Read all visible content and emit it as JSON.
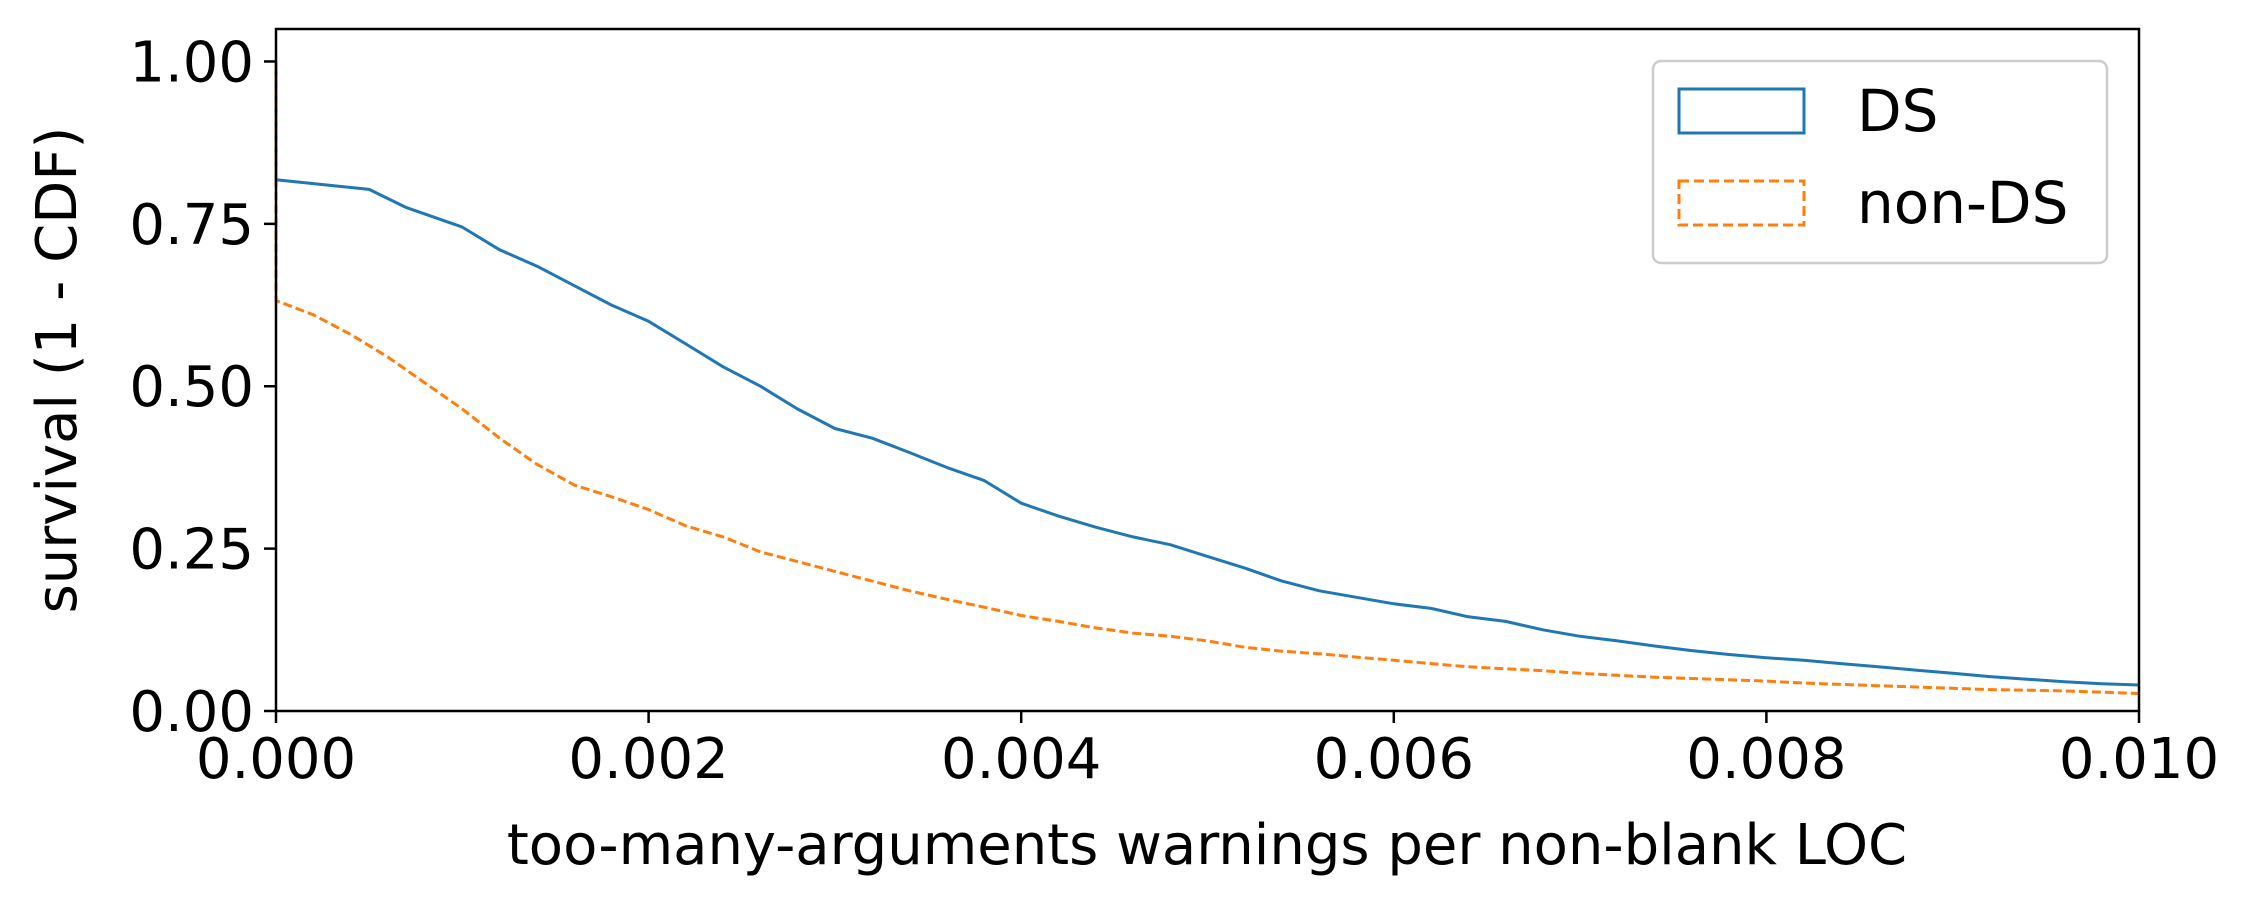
{
  "chart_data": {
    "type": "line",
    "title": "",
    "xlabel": "too-many-arguments warnings per non-blank LOC",
    "ylabel": "survival (1 - CDF)",
    "xlim": [
      0.0,
      0.01
    ],
    "ylim": [
      0.0,
      1.05
    ],
    "x_ticks": [
      0.0,
      0.002,
      0.004,
      0.006,
      0.008,
      0.01
    ],
    "x_tick_labels": [
      "0.000",
      "0.002",
      "0.004",
      "0.006",
      "0.008",
      "0.010"
    ],
    "y_ticks": [
      0.0,
      0.25,
      0.5,
      0.75,
      1.0
    ],
    "y_tick_labels": [
      "0.00",
      "0.25",
      "0.50",
      "0.75",
      "1.00"
    ],
    "grid": false,
    "legend_position": "top-right",
    "series": [
      {
        "name": "DS",
        "color": "#1f77b4",
        "line_style": "solid",
        "x": [
          0.0,
          0.0,
          0.0002,
          0.0005,
          0.0007,
          0.001,
          0.0012,
          0.0014,
          0.0016,
          0.0018,
          0.002,
          0.0022,
          0.0024,
          0.0026,
          0.0028,
          0.003,
          0.0032,
          0.0034,
          0.0036,
          0.0038,
          0.004,
          0.0042,
          0.0044,
          0.0046,
          0.0048,
          0.005,
          0.0052,
          0.0054,
          0.0056,
          0.0058,
          0.006,
          0.0062,
          0.0064,
          0.0066,
          0.0068,
          0.007,
          0.0072,
          0.0074,
          0.0076,
          0.0078,
          0.008,
          0.0082,
          0.0084,
          0.0086,
          0.0088,
          0.009,
          0.0092,
          0.0094,
          0.0096,
          0.0098,
          0.01
        ],
        "y": [
          1.0,
          0.818,
          0.812,
          0.803,
          0.775,
          0.745,
          0.71,
          0.685,
          0.655,
          0.625,
          0.6,
          0.565,
          0.53,
          0.5,
          0.465,
          0.435,
          0.42,
          0.398,
          0.375,
          0.355,
          0.32,
          0.3,
          0.283,
          0.268,
          0.256,
          0.238,
          0.22,
          0.2,
          0.185,
          0.175,
          0.165,
          0.158,
          0.145,
          0.138,
          0.125,
          0.115,
          0.108,
          0.1,
          0.093,
          0.087,
          0.082,
          0.078,
          0.073,
          0.068,
          0.063,
          0.058,
          0.053,
          0.049,
          0.045,
          0.042,
          0.04
        ]
      },
      {
        "name": "non-DS",
        "color": "#ff7f0e",
        "line_style": "dashed",
        "x": [
          0.0,
          0.0,
          0.0002,
          0.0004,
          0.0006,
          0.0008,
          0.001,
          0.0012,
          0.0014,
          0.0016,
          0.0018,
          0.002,
          0.0022,
          0.0024,
          0.0026,
          0.0028,
          0.003,
          0.0032,
          0.0034,
          0.0036,
          0.0038,
          0.004,
          0.0042,
          0.0044,
          0.0046,
          0.0048,
          0.005,
          0.0052,
          0.0054,
          0.0056,
          0.0058,
          0.006,
          0.0062,
          0.0064,
          0.0066,
          0.0068,
          0.007,
          0.0072,
          0.0074,
          0.0076,
          0.0078,
          0.008,
          0.0082,
          0.0084,
          0.0086,
          0.0088,
          0.009,
          0.0092,
          0.0094,
          0.0096,
          0.0098,
          0.01
        ],
        "y": [
          1.0,
          0.632,
          0.61,
          0.58,
          0.545,
          0.505,
          0.465,
          0.42,
          0.38,
          0.348,
          0.33,
          0.31,
          0.285,
          0.268,
          0.245,
          0.23,
          0.215,
          0.2,
          0.185,
          0.172,
          0.16,
          0.147,
          0.138,
          0.128,
          0.12,
          0.115,
          0.108,
          0.098,
          0.092,
          0.088,
          0.083,
          0.078,
          0.073,
          0.068,
          0.065,
          0.062,
          0.058,
          0.055,
          0.052,
          0.05,
          0.048,
          0.046,
          0.043,
          0.041,
          0.039,
          0.037,
          0.035,
          0.033,
          0.032,
          0.031,
          0.029,
          0.027
        ]
      }
    ]
  }
}
